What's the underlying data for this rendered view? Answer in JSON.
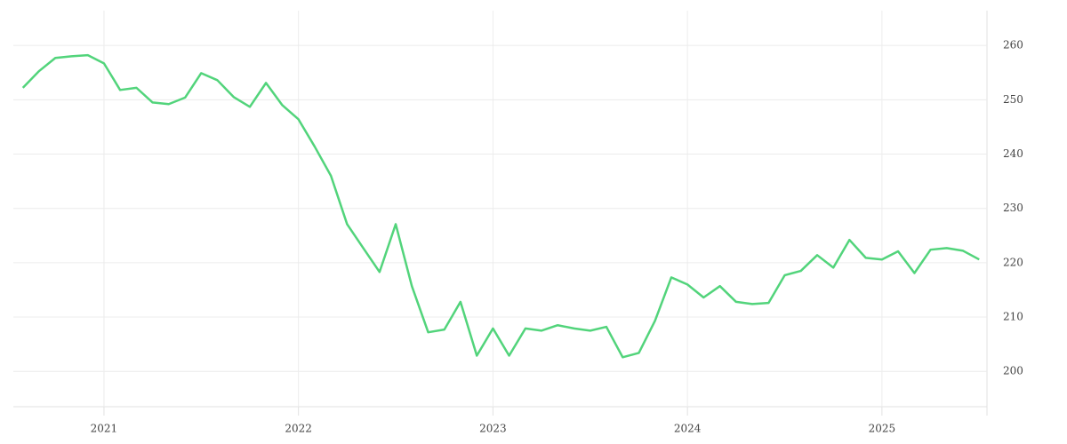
{
  "chart_data": {
    "type": "line",
    "x": [
      2020.583,
      2020.667,
      2020.75,
      2020.833,
      2020.917,
      2021,
      2021.083,
      2021.167,
      2021.25,
      2021.333,
      2021.417,
      2021.5,
      2021.583,
      2021.667,
      2021.75,
      2021.833,
      2021.917,
      2022,
      2022.083,
      2022.167,
      2022.25,
      2022.333,
      2022.417,
      2022.5,
      2022.583,
      2022.667,
      2022.75,
      2022.833,
      2022.917,
      2023,
      2023.083,
      2023.167,
      2023.25,
      2023.333,
      2023.417,
      2023.5,
      2023.583,
      2023.667,
      2023.75,
      2023.833,
      2023.917,
      2024,
      2024.083,
      2024.167,
      2024.25,
      2024.333,
      2024.417,
      2024.5,
      2024.583,
      2024.667,
      2024.75,
      2024.833,
      2024.917,
      2025,
      2025.083,
      2025.167,
      2025.25,
      2025.333,
      2025.417,
      2025.5
    ],
    "series": [
      {
        "color": "#52d47b",
        "values": [
          252.2,
          255.3,
          257.7,
          258.0,
          258.2,
          256.7,
          251.8,
          252.2,
          249.5,
          249.2,
          250.4,
          254.9,
          253.6,
          250.5,
          248.7,
          253.1,
          249.0,
          246.4,
          241.4,
          236.0,
          227.1,
          222.7,
          218.3,
          227.1,
          215.7,
          207.2,
          207.7,
          212.8,
          202.9,
          207.9,
          202.9,
          207.9,
          207.5,
          208.5,
          207.9,
          207.5,
          208.2,
          202.6,
          203.4,
          209.3,
          217.3,
          216.0,
          213.6,
          215.7,
          212.8,
          212.4,
          212.6,
          217.7,
          218.5,
          221.4,
          219.1,
          224.2,
          220.9,
          220.6,
          222.1,
          218.1,
          222.4,
          222.7,
          222.2,
          220.6
        ]
      }
    ],
    "xlim": [
      2020.534,
      2025.54
    ],
    "xticks": [
      2021,
      2022,
      2023,
      2024,
      2025
    ],
    "ylim": [
      193.5,
      266.4
    ],
    "yticks": [
      200,
      210,
      220,
      230,
      240,
      250,
      260
    ],
    "grid": true
  }
}
